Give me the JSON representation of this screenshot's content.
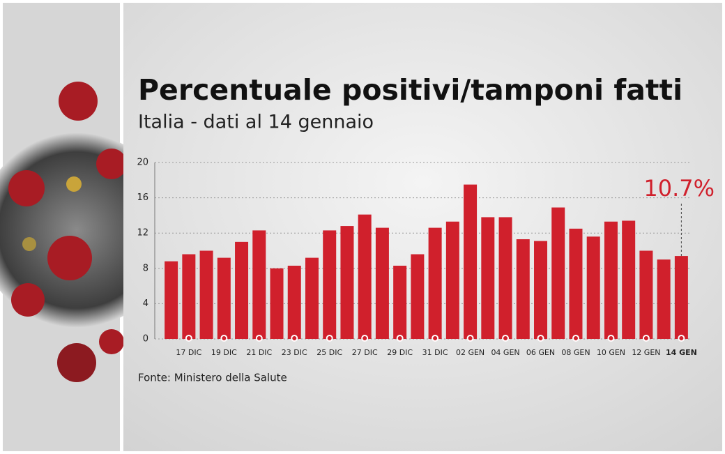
{
  "chart_data": {
    "type": "bar",
    "title": "Percentuale positivi/tamponi fatti",
    "subtitle": "Italia - dati al 14 gennaio",
    "source": "Fonte: Ministero della Salute",
    "annotation": "10.7%",
    "categories": [
      null,
      "17 DIC",
      null,
      "19 DIC",
      null,
      "21 DIC",
      null,
      "23 DIC",
      null,
      "25 DIC",
      null,
      "27 DIC",
      null,
      "29 DIC",
      null,
      "31 DIC",
      null,
      "02 GEN",
      null,
      "04 GEN",
      null,
      "06 GEN",
      null,
      "08 GEN",
      null,
      "10 GEN",
      null,
      "12 GEN",
      null,
      "14 GEN"
    ],
    "values": [
      8.8,
      9.6,
      10.0,
      9.2,
      11.0,
      12.3,
      8.0,
      8.3,
      9.2,
      12.3,
      12.8,
      14.1,
      12.6,
      8.3,
      9.6,
      12.6,
      13.3,
      17.5,
      13.8,
      13.8,
      11.3,
      11.1,
      14.9,
      12.5,
      11.6,
      13.3,
      13.4,
      10.0,
      9.0,
      9.4
    ],
    "color": "#d0202c",
    "ylim": [
      0,
      20
    ],
    "yticks": [
      0,
      4,
      8,
      12,
      16,
      20
    ],
    "grid": true
  }
}
